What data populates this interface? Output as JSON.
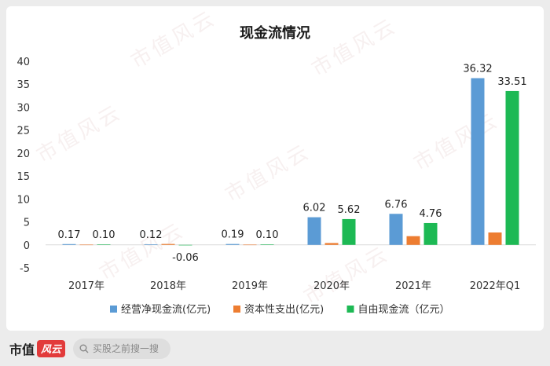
{
  "chart_data": {
    "type": "bar",
    "title": "现金流情况",
    "categories": [
      "2017年",
      "2018年",
      "2019年",
      "2020年",
      "2021年",
      "2022年Q1"
    ],
    "ylim": [
      -5,
      40
    ],
    "yticks": [
      "40",
      "35",
      "30",
      "25",
      "20",
      "15",
      "10",
      "5",
      "0",
      "-5"
    ],
    "grid": false,
    "legend_position": "bottom",
    "series": [
      {
        "name": "经营净现金流(亿元)",
        "color": "#5b9bd5",
        "values": [
          0.17,
          0.12,
          0.19,
          6.02,
          6.76,
          36.32
        ],
        "labels": [
          "0.17",
          "0.12",
          "0.19",
          "6.02",
          "6.76",
          "36.32"
        ]
      },
      {
        "name": "资本性支出(亿元)",
        "color": "#ed7d31",
        "values": [
          0.05,
          0.2,
          0.05,
          0.4,
          1.9,
          2.7
        ],
        "labels": [
          "",
          "",
          "",
          "",
          "",
          ""
        ]
      },
      {
        "name": "自由现金流（亿元）",
        "color": "#1db954",
        "values": [
          0.1,
          -0.06,
          0.1,
          5.62,
          4.76,
          33.51
        ],
        "labels": [
          "0.10",
          "-0.06",
          "0.10",
          "5.62",
          "4.76",
          "33.51"
        ]
      }
    ]
  },
  "footer": {
    "brand": "市值",
    "brand_logo": "风云",
    "search_placeholder": "买股之前搜一搜",
    "search_icon": "search-icon"
  },
  "watermark": "市值风云"
}
